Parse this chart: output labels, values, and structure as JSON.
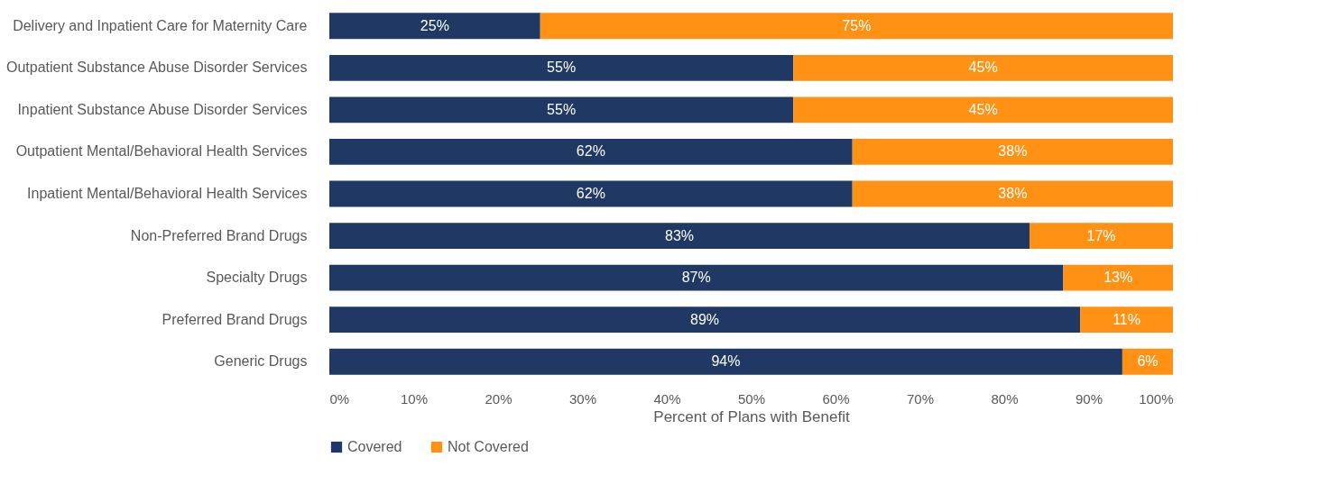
{
  "chart_data": {
    "type": "bar",
    "orientation": "horizontal",
    "stacked": true,
    "xlabel": "Percent of Plans with Benefit",
    "categories": [
      "Delivery and Inpatient Care for Maternity Care",
      "Outpatient Substance Abuse Disorder Services",
      "Inpatient Substance Abuse Disorder Services",
      "Outpatient Mental/Behavioral Health Services",
      "Inpatient Mental/Behavioral Health Services",
      "Non-Preferred Brand Drugs",
      "Specialty Drugs",
      "Preferred Brand Drugs",
      "Generic Drugs"
    ],
    "series": [
      {
        "name": "Covered",
        "color": "#1f3864",
        "values": [
          25,
          55,
          55,
          62,
          62,
          83,
          87,
          89,
          94
        ],
        "value_labels": [
          "25%",
          "55%",
          "55%",
          "62%",
          "62%",
          "83%",
          "87%",
          "89%",
          "94%"
        ]
      },
      {
        "name": "Not Covered",
        "color": "#ff9214",
        "values": [
          75,
          45,
          45,
          38,
          38,
          17,
          13,
          11,
          6
        ],
        "value_labels": [
          "75%",
          "45%",
          "45%",
          "38%",
          "38%",
          "17%",
          "13%",
          "11%",
          "6%"
        ]
      }
    ],
    "xlim": [
      0,
      100
    ],
    "xticks": [
      {
        "value": 0,
        "label": "0%"
      },
      {
        "value": 10,
        "label": "10%"
      },
      {
        "value": 20,
        "label": "20%"
      },
      {
        "value": 30,
        "label": "30%"
      },
      {
        "value": 40,
        "label": "40%"
      },
      {
        "value": 50,
        "label": "50%"
      },
      {
        "value": 60,
        "label": "60%"
      },
      {
        "value": 70,
        "label": "70%"
      },
      {
        "value": 80,
        "label": "80%"
      },
      {
        "value": 90,
        "label": "90%"
      },
      {
        "value": 100,
        "label": "100%"
      }
    ],
    "grid": false,
    "legend": "bottom"
  }
}
